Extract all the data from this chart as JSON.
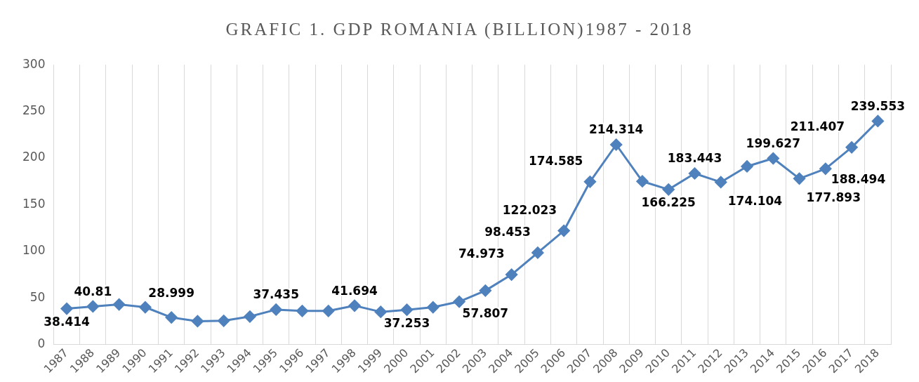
{
  "chart_data": {
    "type": "line",
    "title": "GRAFIC 1. GDP ROMANIA (BILLION)1987 - 2018",
    "categories": [
      "1987",
      "1988",
      "1989",
      "1990",
      "1991",
      "1992",
      "1993",
      "1994",
      "1995",
      "1996",
      "1997",
      "1998",
      "1999",
      "2000",
      "2001",
      "2002",
      "2003",
      "2004",
      "2005",
      "2006",
      "2007",
      "2008",
      "2009",
      "2010",
      "2011",
      "2012",
      "2013",
      "2014",
      "2015",
      "2016",
      "2017",
      "2018"
    ],
    "series": [
      {
        "color": "#4f81bd",
        "values": [
          38.414,
          40.81,
          43,
          40,
          28.999,
          25,
          25.5,
          30,
          37.435,
          36,
          36,
          41.694,
          35,
          37.253,
          40,
          46,
          57.807,
          74.973,
          98.453,
          122.023,
          174.585,
          214.314,
          175,
          166.225,
          183.443,
          174.104,
          191,
          199.627,
          177.893,
          188.494,
          211.407,
          239.553
        ],
        "value_labels": [
          "38.414",
          "40.81",
          null,
          null,
          "28.999",
          null,
          null,
          null,
          "37.435",
          null,
          null,
          "41.694",
          null,
          "37.253",
          null,
          null,
          "57.807",
          "74.973",
          "98.453",
          "122.023",
          "174.585",
          "214.314",
          null,
          "166.225",
          "183.443",
          "174.104",
          null,
          "199.627",
          "177.893",
          "188.494",
          "211.407",
          "239.553"
        ]
      }
    ],
    "ylim": [
      0,
      300
    ],
    "yticks": [
      0,
      50,
      100,
      150,
      200,
      250,
      300
    ],
    "grid": "x",
    "legend": false,
    "marker": "diamond",
    "line_style": "solid"
  }
}
